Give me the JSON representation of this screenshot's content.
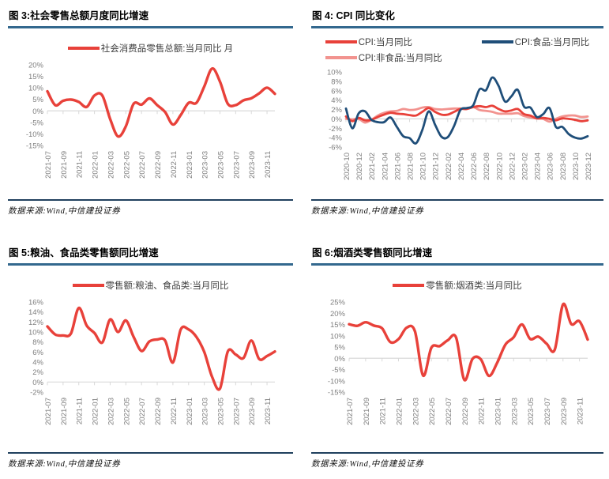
{
  "colors": {
    "accent_red": "#e8413a",
    "food_navy": "#1f4e79",
    "nonfood_pink": "#f2938f",
    "title_rule_blue": "#33688e",
    "source_rule_navy": "#20405e",
    "axis_gray": "#d9d9d9",
    "tick_label_gray": "#7f7f7f",
    "legend_text": "#3f3f3f"
  },
  "chart_data": [
    {
      "type": "line",
      "title": "图 3:社会零售总额月度同比增速",
      "source": "数据来源:Wind,中信建投证券",
      "legend_position": "top",
      "grid": "zero-axis-only",
      "ylim": [
        -15,
        20
      ],
      "yticks": [
        20,
        15,
        10,
        5,
        0,
        -5,
        -10,
        -15
      ],
      "label_every": 2,
      "categories": [
        "2021-07",
        "2021-08",
        "2021-09",
        "2021-10",
        "2021-11",
        "2021-12",
        "2022-01",
        "2022-02",
        "2022-03",
        "2022-04",
        "2022-05",
        "2022-06",
        "2022-07",
        "2022-08",
        "2022-09",
        "2022-10",
        "2022-11",
        "2022-12",
        "2023-01",
        "2023-02",
        "2023-03",
        "2023-04",
        "2023-05",
        "2023-06",
        "2023-07",
        "2023-08",
        "2023-09",
        "2023-10",
        "2023-11",
        "2023-12"
      ],
      "series": [
        {
          "name": "社会消费品零售总额:当月同比 月",
          "color": "#e8413a",
          "values": [
            8.5,
            2.5,
            4.4,
            4.9,
            3.9,
            1.7,
            6.7,
            6.7,
            -3.5,
            -11.1,
            -6.7,
            3.1,
            2.7,
            5.4,
            2.5,
            -0.5,
            -5.9,
            -1.8,
            3.5,
            3.5,
            10.6,
            18.4,
            12.7,
            3.1,
            2.5,
            4.6,
            5.5,
            7.6,
            10.1,
            7.4
          ]
        }
      ]
    },
    {
      "type": "line",
      "title": "图 4: CPI 同比变化",
      "source": "数据来源:Wind,中信建投证券",
      "legend_position": "top",
      "grid": "zero-axis-only",
      "ylim": [
        -6,
        10
      ],
      "yticks": [
        10,
        8,
        6,
        4,
        2,
        0,
        -2,
        -4,
        -6
      ],
      "label_every": 2,
      "categories": [
        "2020-10",
        "2020-11",
        "2020-12",
        "2021-01",
        "2021-02",
        "2021-03",
        "2021-04",
        "2021-05",
        "2021-06",
        "2021-07",
        "2021-08",
        "2021-09",
        "2021-10",
        "2021-11",
        "2021-12",
        "2022-01",
        "2022-02",
        "2022-03",
        "2022-04",
        "2022-05",
        "2022-06",
        "2022-07",
        "2022-08",
        "2022-09",
        "2022-10",
        "2022-11",
        "2022-12",
        "2023-01",
        "2023-02",
        "2023-03",
        "2023-04",
        "2023-05",
        "2023-06",
        "2023-07",
        "2023-08",
        "2023-09",
        "2023-10",
        "2023-11",
        "2023-12"
      ],
      "series": [
        {
          "name": "CPI:当月同比",
          "color": "#e8413a",
          "values": [
            0.5,
            -0.5,
            0.2,
            -0.3,
            -0.2,
            0.4,
            0.9,
            1.3,
            1.1,
            1.0,
            0.8,
            0.7,
            1.5,
            2.3,
            1.5,
            0.9,
            0.9,
            1.5,
            2.1,
            2.1,
            2.5,
            2.7,
            2.5,
            2.8,
            2.1,
            1.6,
            1.8,
            2.1,
            1.0,
            0.7,
            0.1,
            0.2,
            0.0,
            -0.3,
            0.1,
            0.0,
            -0.2,
            -0.5,
            -0.3
          ]
        },
        {
          "name": "CPI:食品:当月同比",
          "color": "#1f4e79",
          "values": [
            2.2,
            -2.0,
            1.2,
            1.6,
            -0.2,
            -0.7,
            -0.7,
            0.3,
            -1.7,
            -3.7,
            -4.1,
            -5.2,
            -2.4,
            1.6,
            -1.2,
            -3.8,
            -3.9,
            -1.5,
            1.9,
            2.3,
            2.9,
            6.3,
            6.1,
            8.8,
            7.0,
            3.7,
            4.8,
            6.2,
            2.6,
            2.4,
            0.4,
            1.0,
            2.3,
            -1.7,
            -1.7,
            -3.2,
            -4.0,
            -4.2,
            -3.7
          ]
        },
        {
          "name": "CPI:非食品:当月同比",
          "color": "#f2938f",
          "values": [
            0.0,
            -0.1,
            0.0,
            -0.8,
            -0.2,
            0.7,
            1.3,
            1.6,
            1.7,
            2.1,
            1.9,
            2.0,
            2.4,
            2.5,
            2.1,
            2.0,
            2.1,
            2.2,
            2.2,
            2.1,
            2.5,
            1.9,
            1.7,
            1.5,
            1.1,
            1.1,
            1.1,
            1.2,
            0.6,
            0.3,
            0.1,
            0.0,
            -0.6,
            0.0,
            0.5,
            0.7,
            0.7,
            0.4,
            0.5
          ]
        }
      ]
    },
    {
      "type": "line",
      "title": "图 5:粮油、食品类零售额同比增速",
      "source": "数据来源:Wind,中信建投证券",
      "legend_position": "top",
      "grid": "zero-axis-only",
      "ylim": [
        -2,
        16
      ],
      "yticks": [
        16,
        14,
        12,
        10,
        8,
        6,
        4,
        2,
        0,
        -2
      ],
      "label_every": 2,
      "categories": [
        "2021-07",
        "2021-08",
        "2021-09",
        "2021-10",
        "2021-11",
        "2021-12",
        "2022-01",
        "2022-02",
        "2022-03",
        "2022-04",
        "2022-05",
        "2022-06",
        "2022-07",
        "2022-08",
        "2022-09",
        "2022-10",
        "2022-11",
        "2022-12",
        "2023-01",
        "2023-02",
        "2023-03",
        "2023-04",
        "2023-05",
        "2023-06",
        "2023-07",
        "2023-08",
        "2023-09",
        "2023-10",
        "2023-11",
        "2023-12"
      ],
      "series": [
        {
          "name": "零售额:粮油、食品类:当月同比",
          "color": "#e8413a",
          "values": [
            11.1,
            9.5,
            9.3,
            9.7,
            14.8,
            11.3,
            9.8,
            7.9,
            12.5,
            10.0,
            12.3,
            9.0,
            6.2,
            8.1,
            8.5,
            8.3,
            3.9,
            10.5,
            10.5,
            9.0,
            6.0,
            1.0,
            -1.3,
            6.1,
            5.5,
            4.8,
            8.3,
            4.6,
            5.2,
            6.1
          ]
        }
      ]
    },
    {
      "type": "line",
      "title": "图 6:烟酒类零售额同比增速",
      "source": "数据来源:Wind,中信建投证券",
      "legend_position": "top",
      "grid": "zero-axis-only",
      "ylim": [
        -15,
        25
      ],
      "yticks": [
        25,
        20,
        15,
        10,
        5,
        0,
        -5,
        -10,
        -15
      ],
      "label_every": 2,
      "categories": [
        "2021-07",
        "2021-08",
        "2021-09",
        "2021-10",
        "2021-11",
        "2021-12",
        "2022-01",
        "2022-02",
        "2022-03",
        "2022-04",
        "2022-05",
        "2022-06",
        "2022-07",
        "2022-08",
        "2022-09",
        "2022-10",
        "2022-11",
        "2022-12",
        "2023-01",
        "2023-02",
        "2023-03",
        "2023-04",
        "2023-05",
        "2023-06",
        "2023-07",
        "2023-08",
        "2023-09",
        "2023-10",
        "2023-11",
        "2023-12"
      ],
      "series": [
        {
          "name": "零售额:烟酒类:当月同比",
          "color": "#e8413a",
          "values": [
            15.1,
            14.4,
            16.0,
            14.5,
            13.3,
            7.2,
            8.5,
            13.6,
            12.0,
            -7.7,
            4.7,
            5.4,
            8.0,
            9.2,
            -9.6,
            -0.3,
            -0.4,
            -7.8,
            -2.0,
            6.1,
            9.3,
            15.0,
            8.6,
            9.6,
            6.5,
            3.8,
            23.9,
            15.2,
            16.4,
            8.3
          ]
        }
      ]
    }
  ]
}
